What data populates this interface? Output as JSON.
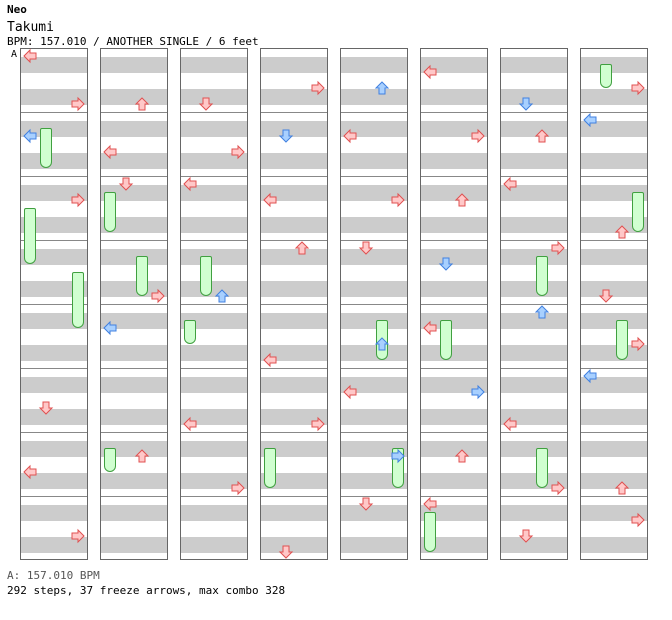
{
  "header": {
    "artist": "Neo",
    "title": "Takumi",
    "info": "BPM: 157.010 / ANOTHER SINGLE / 6 feet"
  },
  "marker": "A",
  "footer": {
    "bpm_line": "A: 157.010 BPM",
    "stats_line": "292 steps, 37 freeze arrows, max combo 328"
  },
  "colors": {
    "red": "#ffc8c8",
    "red_stroke": "#e05050",
    "blue": "#a8d0ff",
    "blue_stroke": "#4080e0",
    "freeze": "#d0ffd0",
    "freeze_stroke": "#40a040",
    "stripe": "#cccccc",
    "measure_line": "#888888"
  },
  "chart": {
    "columns": 8,
    "measures_per_column": 8,
    "lanes": [
      "left",
      "down",
      "up",
      "right"
    ],
    "notes": [
      [
        0,
        0,
        0,
        "R"
      ],
      [
        0,
        0,
        3,
        "R"
      ],
      [
        0,
        1,
        0,
        "B"
      ],
      [
        0,
        2,
        3,
        "R"
      ],
      [
        0,
        5,
        1,
        "R"
      ],
      [
        0,
        6,
        0,
        "R"
      ],
      [
        0,
        7,
        3,
        "R"
      ],
      [
        1,
        0,
        2,
        "R"
      ],
      [
        1,
        1,
        0,
        "R"
      ],
      [
        1,
        2,
        1,
        "R"
      ],
      [
        1,
        3,
        3,
        "R"
      ],
      [
        1,
        4,
        0,
        "B"
      ],
      [
        1,
        6,
        2,
        "R"
      ],
      [
        2,
        0,
        1,
        "R"
      ],
      [
        2,
        1,
        3,
        "R"
      ],
      [
        2,
        2,
        0,
        "R"
      ],
      [
        2,
        3,
        2,
        "B"
      ],
      [
        2,
        5,
        0,
        "R"
      ],
      [
        2,
        6,
        3,
        "R"
      ],
      [
        3,
        0,
        3,
        "R"
      ],
      [
        3,
        1,
        1,
        "B"
      ],
      [
        3,
        2,
        0,
        "R"
      ],
      [
        3,
        3,
        2,
        "R"
      ],
      [
        3,
        4,
        0,
        "R"
      ],
      [
        3,
        5,
        3,
        "R"
      ],
      [
        3,
        7,
        1,
        "R"
      ],
      [
        4,
        0,
        2,
        "B"
      ],
      [
        4,
        1,
        0,
        "R"
      ],
      [
        4,
        2,
        3,
        "R"
      ],
      [
        4,
        3,
        1,
        "R"
      ],
      [
        4,
        4,
        2,
        "B"
      ],
      [
        4,
        5,
        0,
        "R"
      ],
      [
        4,
        6,
        3,
        "B"
      ],
      [
        4,
        7,
        1,
        "R"
      ],
      [
        5,
        0,
        0,
        "R"
      ],
      [
        5,
        1,
        3,
        "R"
      ],
      [
        5,
        2,
        2,
        "R"
      ],
      [
        5,
        3,
        1,
        "B"
      ],
      [
        5,
        4,
        0,
        "R"
      ],
      [
        5,
        5,
        3,
        "B"
      ],
      [
        5,
        6,
        2,
        "R"
      ],
      [
        5,
        7,
        0,
        "R"
      ],
      [
        6,
        0,
        1,
        "B"
      ],
      [
        6,
        1,
        2,
        "R"
      ],
      [
        6,
        2,
        0,
        "R"
      ],
      [
        6,
        3,
        3,
        "R"
      ],
      [
        6,
        4,
        2,
        "B"
      ],
      [
        6,
        5,
        0,
        "R"
      ],
      [
        6,
        6,
        3,
        "R"
      ],
      [
        6,
        7,
        1,
        "R"
      ],
      [
        7,
        0,
        3,
        "R"
      ],
      [
        7,
        1,
        0,
        "B"
      ],
      [
        7,
        2,
        2,
        "R"
      ],
      [
        7,
        3,
        1,
        "R"
      ],
      [
        7,
        4,
        3,
        "R"
      ],
      [
        7,
        5,
        0,
        "B"
      ],
      [
        7,
        6,
        2,
        "R"
      ],
      [
        7,
        7,
        3,
        "R"
      ]
    ],
    "freezes": [
      [
        0,
        1,
        1,
        1,
        2
      ],
      [
        0,
        2,
        0,
        2,
        3
      ],
      [
        0,
        3,
        3,
        2,
        3
      ],
      [
        1,
        2,
        0,
        1,
        2
      ],
      [
        1,
        3,
        2,
        1,
        2
      ],
      [
        1,
        6,
        0,
        1,
        1
      ],
      [
        2,
        3,
        1,
        1,
        2
      ],
      [
        2,
        4,
        0,
        1,
        1
      ],
      [
        3,
        6,
        0,
        1,
        2
      ],
      [
        4,
        4,
        2,
        1,
        2
      ],
      [
        4,
        6,
        3,
        1,
        2
      ],
      [
        5,
        4,
        1,
        1,
        2
      ],
      [
        5,
        7,
        0,
        1,
        2
      ],
      [
        6,
        3,
        2,
        1,
        2
      ],
      [
        6,
        6,
        2,
        1,
        2
      ],
      [
        7,
        0,
        1,
        1,
        1
      ],
      [
        7,
        2,
        3,
        1,
        2
      ],
      [
        7,
        4,
        2,
        1,
        2
      ]
    ]
  }
}
